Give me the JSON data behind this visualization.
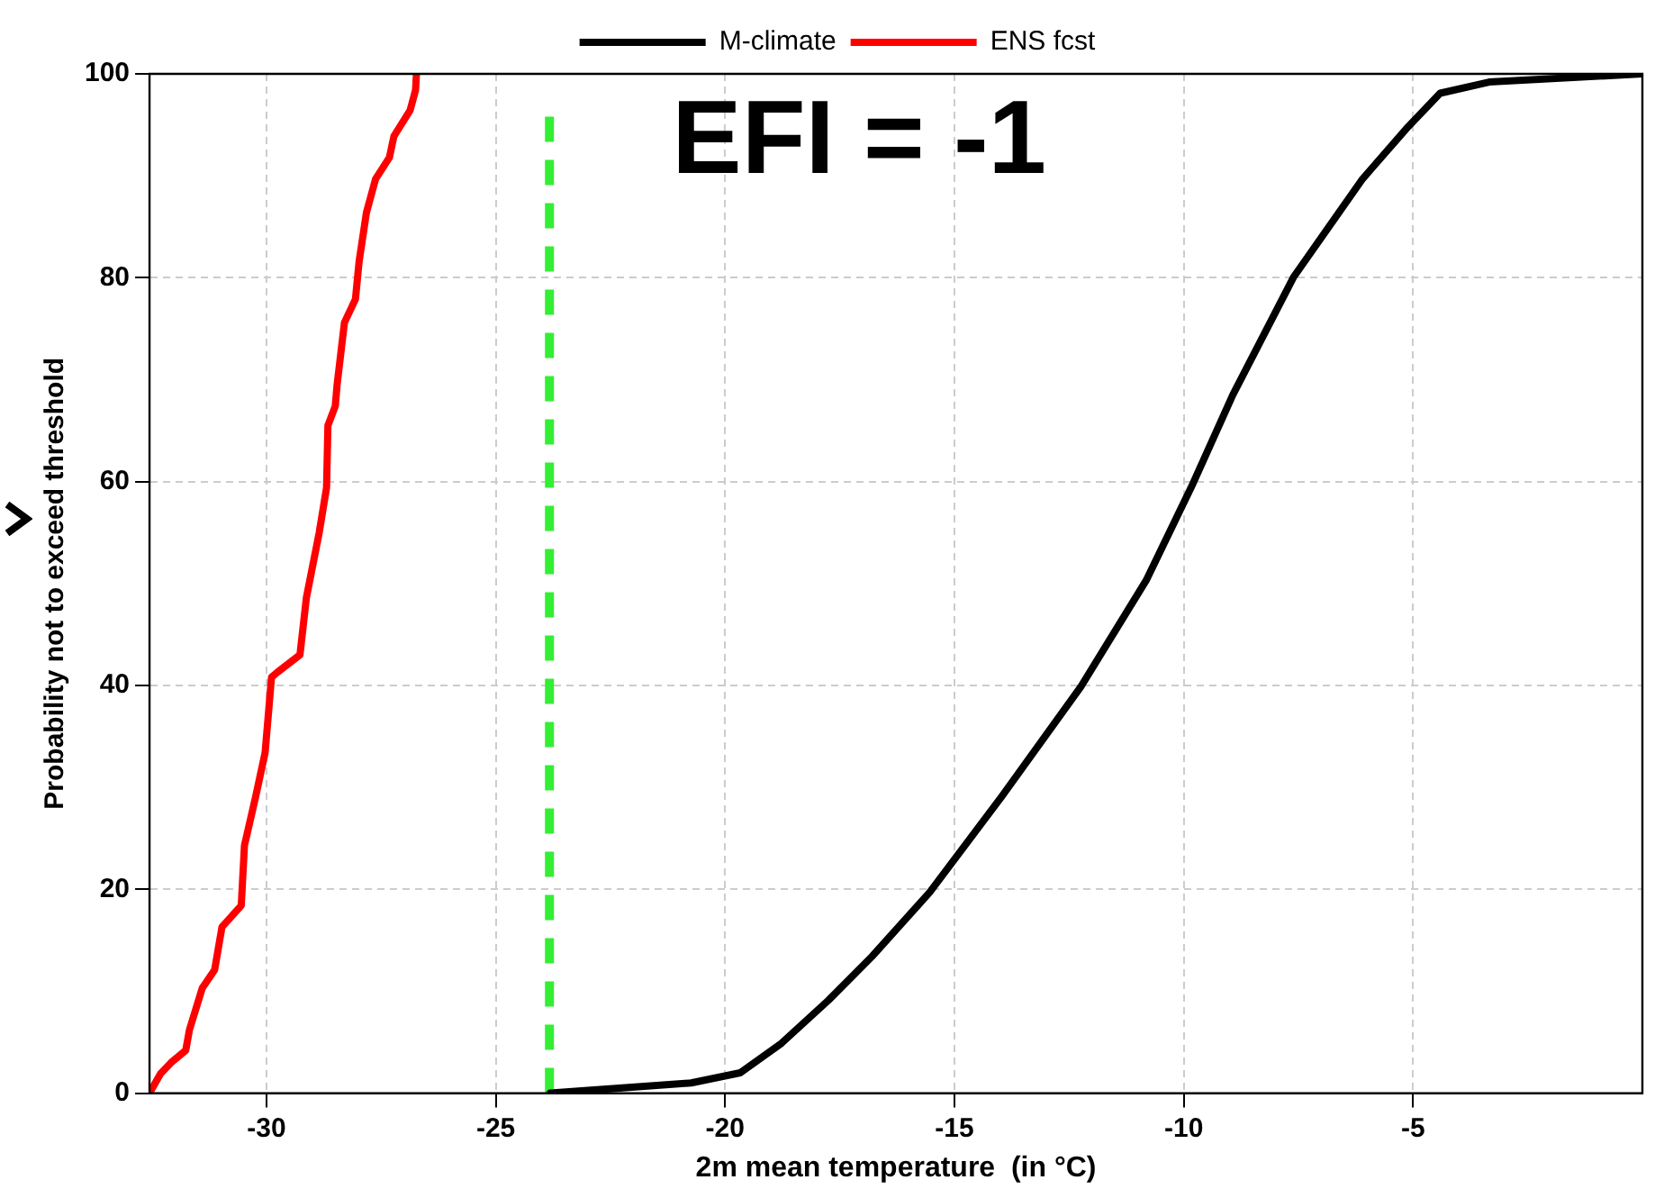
{
  "chart_data": {
    "type": "line",
    "xlabel": "2m mean temperature  (in °C)",
    "ylabel": "Probability not to exceed threshold",
    "annotations": [
      "EFI = -1"
    ],
    "xlim": [
      -32.55,
      0
    ],
    "xticks": [
      -30,
      -25,
      -20,
      -15,
      -10,
      -5
    ],
    "ylim": [
      0,
      100
    ],
    "yticks": [
      0,
      20,
      40,
      60,
      80,
      100
    ],
    "grid": true,
    "legend": "top",
    "line_style": "solid",
    "marker": "none",
    "ref_lines": [
      {
        "axis": "x",
        "value": -23.83,
        "color": "#33ee33",
        "line_style": "dashed"
      }
    ],
    "series": [
      {
        "name": "M-climate",
        "color": "#000000",
        "x": [
          -23.81,
          -20.74,
          -19.67,
          -18.77,
          -17.75,
          -16.8,
          -15.54,
          -13.97,
          -12.24,
          -10.82,
          -9.8,
          -8.93,
          -7.6,
          -6.1,
          -5.15,
          -4.41,
          -3.34,
          0
        ],
        "values": [
          0,
          1,
          2,
          4.9,
          9.1,
          13.4,
          19.7,
          29.1,
          39.9,
          50.3,
          59.8,
          68.5,
          80.1,
          89.7,
          94.6,
          98.1,
          99.2,
          100
        ]
      },
      {
        "name": "ENS fcst",
        "color": "#ff0000",
        "x": [
          -32.55,
          -32.31,
          -32.08,
          -31.76,
          -31.68,
          -31.4,
          -31.13,
          -30.97,
          -30.55,
          -30.48,
          -30.24,
          -30.03,
          -29.89,
          -29.76,
          -29.27,
          -29.13,
          -28.85,
          -28.69,
          -28.66,
          -28.5,
          -28.46,
          -28.3,
          -28.06,
          -27.98,
          -27.82,
          -27.62,
          -27.32,
          -27.22,
          -26.87,
          -26.75,
          -26.73
        ],
        "values": [
          0,
          1.9,
          3,
          4.2,
          6.2,
          10.3,
          12.1,
          16.3,
          18.4,
          24.3,
          29,
          33.4,
          40.8,
          41.3,
          43,
          48.6,
          55,
          59.4,
          65.5,
          67.4,
          69.5,
          75.6,
          77.9,
          81.6,
          86.4,
          89.7,
          91.8,
          93.9,
          96.4,
          98.4,
          100
        ]
      }
    ]
  }
}
